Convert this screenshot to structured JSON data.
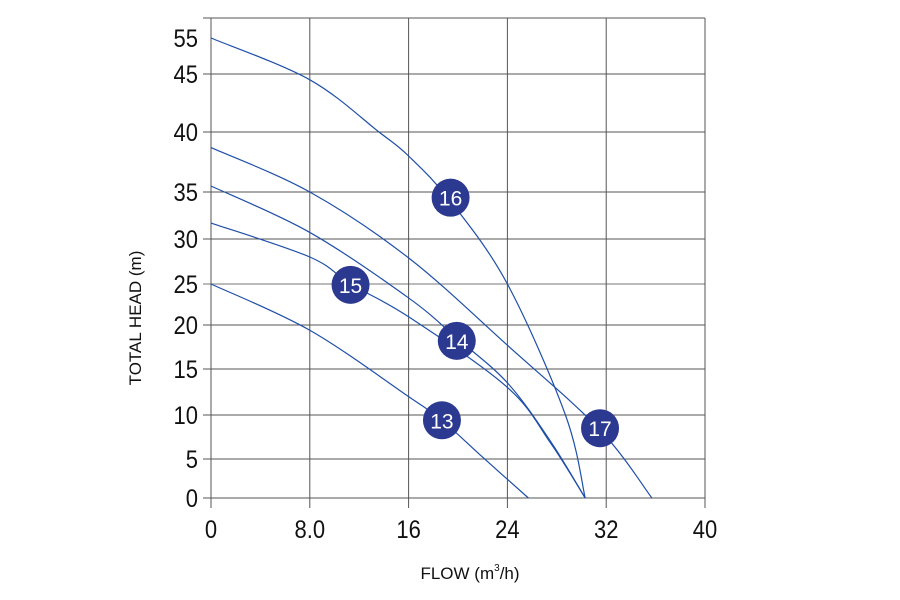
{
  "chart_data": {
    "type": "line",
    "title": "",
    "xlabel": "FLOW (m³/h)",
    "xlabel_parts": {
      "pre": "FLOW (m",
      "sup": "3",
      "post": "/h)"
    },
    "ylabel": "TOTAL HEAD (m)",
    "xlim": [
      0,
      40
    ],
    "ylim": [
      0,
      55
    ],
    "y_scale": "non-uniform",
    "grid": true,
    "x_ticks": [
      {
        "value": 0,
        "label": "0"
      },
      {
        "value": 8,
        "label": "8.0"
      },
      {
        "value": 16,
        "label": "16"
      },
      {
        "value": 24,
        "label": "24"
      },
      {
        "value": 32,
        "label": "32"
      },
      {
        "value": 40,
        "label": "40"
      }
    ],
    "y_ticks": [
      {
        "value": 0,
        "label": "0"
      },
      {
        "value": 5,
        "label": "5"
      },
      {
        "value": 10,
        "label": "10"
      },
      {
        "value": 15,
        "label": "15"
      },
      {
        "value": 20,
        "label": "20"
      },
      {
        "value": 25,
        "label": "25"
      },
      {
        "value": 30,
        "label": "30"
      },
      {
        "value": 35,
        "label": "35"
      },
      {
        "value": 40,
        "label": "40"
      },
      {
        "value": 45,
        "label": "45"
      },
      {
        "value": 55,
        "label": "55"
      }
    ],
    "series": [
      {
        "name": "13",
        "label_at": [
          18.7,
          9.4
        ],
        "points": [
          [
            0,
            25
          ],
          [
            8,
            19.4
          ],
          [
            16,
            12
          ],
          [
            18.7,
            9.4
          ],
          [
            22,
            5.2
          ],
          [
            25.7,
            0
          ]
        ]
      },
      {
        "name": "14",
        "label_at": [
          19.9,
          18.2
        ],
        "points": [
          [
            0,
            35.5
          ],
          [
            8,
            30.7
          ],
          [
            16,
            23.3
          ],
          [
            19.9,
            18.5
          ],
          [
            24,
            13.5
          ],
          [
            27.5,
            7
          ],
          [
            30.3,
            0
          ]
        ]
      },
      {
        "name": "15",
        "label_at": [
          11.3,
          24.9
        ],
        "points": [
          [
            0,
            31.7
          ],
          [
            8,
            28
          ],
          [
            11.3,
            25
          ],
          [
            16,
            21
          ],
          [
            24,
            13
          ],
          [
            27.5,
            6.8
          ],
          [
            30.3,
            0
          ]
        ]
      },
      {
        "name": "16",
        "label_at": [
          19.4,
          34.4
        ],
        "points": [
          [
            0,
            55
          ],
          [
            8,
            44.5
          ],
          [
            13.6,
            40
          ],
          [
            16,
            38
          ],
          [
            19.4,
            34
          ],
          [
            24,
            25
          ],
          [
            28.7,
            10
          ],
          [
            30.3,
            0
          ]
        ]
      },
      {
        "name": "17",
        "label_at": [
          31.5,
          8.5
        ],
        "points": [
          [
            0,
            38.7
          ],
          [
            8,
            35
          ],
          [
            16,
            27.9
          ],
          [
            24,
            17.7
          ],
          [
            31.5,
            8.3
          ],
          [
            35.7,
            0
          ]
        ]
      }
    ],
    "colors": {
      "line": "#1f4fa8",
      "marker": "#2b3990",
      "grid": "#555555"
    }
  }
}
